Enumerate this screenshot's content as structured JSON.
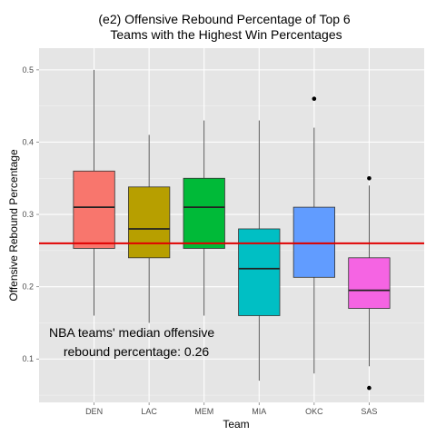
{
  "chart_data": {
    "type": "boxplot",
    "title": "(e2) Offensive Rebound Percentage of Top 6\nTeams with the Highest Win Percentages",
    "xlabel": "Team",
    "ylabel": "Offensive Rebound Percentage",
    "ylim": [
      0.04,
      0.53
    ],
    "yticks": [
      0.1,
      0.2,
      0.3,
      0.4,
      0.5
    ],
    "ytick_labels": [
      "0.1",
      "0.2",
      "0.3",
      "0.4",
      "0.5"
    ],
    "grid": true,
    "legend": "none",
    "reference_line": {
      "y": 0.26,
      "color": "#e00000"
    },
    "annotation": [
      "NBA teams' median offensive",
      "rebound percentage: 0.26"
    ],
    "categories": [
      "DEN",
      "LAC",
      "MEM",
      "MIA",
      "OKC",
      "SAS"
    ],
    "boxes": [
      {
        "team": "DEN",
        "color": "#f8766d",
        "min": 0.16,
        "q1": 0.253,
        "median": 0.31,
        "q3": 0.36,
        "max": 0.5,
        "outliers": []
      },
      {
        "team": "LAC",
        "color": "#b79f00",
        "min": 0.15,
        "q1": 0.24,
        "median": 0.28,
        "q3": 0.338,
        "max": 0.41,
        "outliers": []
      },
      {
        "team": "MEM",
        "color": "#00ba38",
        "min": 0.16,
        "q1": 0.253,
        "median": 0.31,
        "q3": 0.35,
        "max": 0.43,
        "outliers": []
      },
      {
        "team": "MIA",
        "color": "#00bfc4",
        "min": 0.07,
        "q1": 0.16,
        "median": 0.225,
        "q3": 0.28,
        "max": 0.43,
        "outliers": []
      },
      {
        "team": "OKC",
        "color": "#619cff",
        "min": 0.08,
        "q1": 0.213,
        "median": 0.26,
        "q3": 0.31,
        "max": 0.42,
        "outliers": [
          0.46
        ]
      },
      {
        "team": "SAS",
        "color": "#f564e3",
        "min": 0.09,
        "q1": 0.17,
        "median": 0.195,
        "q3": 0.24,
        "max": 0.34,
        "outliers": [
          0.35,
          0.06
        ]
      }
    ]
  }
}
